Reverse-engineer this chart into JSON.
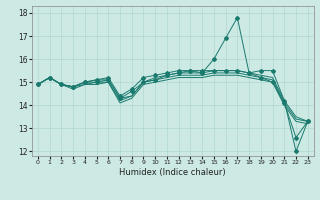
{
  "title": "",
  "xlabel": "Humidex (Indice chaleur)",
  "ylabel": "",
  "bg_color": "#cce9e4",
  "line_color": "#1a7a6e",
  "grid_color": "#b0d8d2",
  "xlim": [
    -0.5,
    23.5
  ],
  "ylim": [
    11.8,
    18.3
  ],
  "yticks": [
    12,
    13,
    14,
    15,
    16,
    17,
    18
  ],
  "xticks": [
    0,
    1,
    2,
    3,
    4,
    5,
    6,
    7,
    8,
    9,
    10,
    11,
    12,
    13,
    14,
    15,
    16,
    17,
    18,
    19,
    20,
    21,
    22,
    23
  ],
  "series": [
    {
      "x": [
        0,
        1,
        2,
        3,
        4,
        5,
        6,
        7,
        8,
        9,
        10,
        11,
        12,
        13,
        14,
        15,
        16,
        17,
        18,
        19,
        20,
        21,
        22,
        23
      ],
      "y": [
        14.9,
        15.2,
        14.9,
        14.8,
        15.0,
        15.1,
        15.2,
        14.4,
        14.7,
        15.2,
        15.3,
        15.4,
        15.5,
        15.5,
        15.4,
        16.0,
        16.9,
        17.8,
        15.4,
        15.5,
        15.5,
        14.2,
        12.0,
        13.3
      ],
      "marker": true
    },
    {
      "x": [
        0,
        1,
        2,
        3,
        4,
        5,
        6,
        7,
        8,
        9,
        10,
        11,
        12,
        13,
        14,
        15,
        16,
        17,
        18,
        19,
        20,
        21,
        22,
        23
      ],
      "y": [
        14.9,
        15.2,
        14.9,
        14.8,
        15.0,
        15.1,
        15.1,
        14.3,
        14.4,
        15.0,
        15.2,
        15.3,
        15.4,
        15.4,
        15.4,
        15.5,
        15.5,
        15.5,
        15.4,
        15.3,
        15.2,
        14.2,
        13.5,
        13.3
      ],
      "marker": false
    },
    {
      "x": [
        0,
        1,
        2,
        3,
        4,
        5,
        6,
        7,
        8,
        9,
        10,
        11,
        12,
        13,
        14,
        15,
        16,
        17,
        18,
        19,
        20,
        21,
        22,
        23
      ],
      "y": [
        14.9,
        15.2,
        14.9,
        14.8,
        14.9,
        15.0,
        15.0,
        14.2,
        14.4,
        15.0,
        15.1,
        15.2,
        15.3,
        15.3,
        15.3,
        15.4,
        15.4,
        15.4,
        15.3,
        15.2,
        15.1,
        14.1,
        13.4,
        13.3
      ],
      "marker": false
    },
    {
      "x": [
        0,
        1,
        2,
        3,
        4,
        5,
        6,
        7,
        8,
        9,
        10,
        11,
        12,
        13,
        14,
        15,
        16,
        17,
        18,
        19,
        20,
        21,
        22,
        23
      ],
      "y": [
        14.9,
        15.2,
        14.9,
        14.7,
        14.9,
        14.9,
        15.0,
        14.1,
        14.3,
        14.9,
        15.0,
        15.1,
        15.2,
        15.2,
        15.2,
        15.3,
        15.3,
        15.3,
        15.2,
        15.1,
        15.0,
        14.0,
        13.3,
        13.2
      ],
      "marker": false
    },
    {
      "x": [
        0,
        1,
        2,
        3,
        4,
        5,
        6,
        7,
        8,
        9,
        10,
        11,
        12,
        13,
        14,
        15,
        16,
        17,
        18,
        19,
        20,
        21,
        22,
        23
      ],
      "y": [
        14.9,
        15.2,
        14.9,
        14.8,
        15.0,
        15.0,
        15.1,
        14.3,
        14.6,
        15.0,
        15.1,
        15.3,
        15.4,
        15.5,
        15.5,
        15.5,
        15.5,
        15.5,
        15.4,
        15.2,
        15.0,
        14.1,
        12.6,
        13.3
      ],
      "marker": true
    }
  ]
}
